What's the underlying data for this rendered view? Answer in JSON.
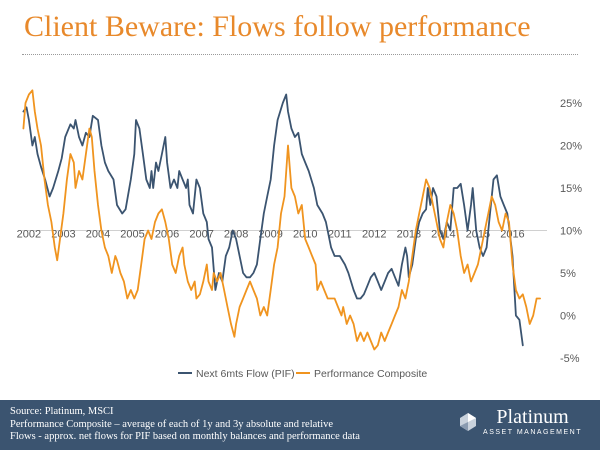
{
  "title": "Client Beware: Flows follow performance",
  "colors": {
    "title": "#e8892b",
    "flow": "#3b5470",
    "performance": "#f0941f",
    "footer_bg": "#3b5470",
    "axis_text": "#595959"
  },
  "chart_data": {
    "type": "line",
    "title": "",
    "xlabel": "",
    "ylabel": "",
    "x_tick_labels": [
      "2002",
      "2003",
      "2004",
      "2005",
      "2006",
      "2007",
      "2008",
      "2009",
      "2010",
      "2011",
      "2012",
      "2013",
      "2014",
      "2015",
      "2016"
    ],
    "y_tick_labels": [
      "25%",
      "20%",
      "15%",
      "10%",
      "5%",
      "0%",
      "-5%"
    ],
    "y_ticks": [
      25,
      20,
      15,
      10,
      5,
      0,
      -5
    ],
    "xlim": [
      2001.8,
      2017.0
    ],
    "ylim": [
      -5,
      27
    ],
    "x_axis_at": 10,
    "legend_position": "bottom",
    "series": [
      {
        "name": "Next 6mts Flow (PIF)",
        "color": "#3b5470",
        "points": [
          [
            2001.84,
            24
          ],
          [
            2001.93,
            24.5
          ],
          [
            2002.0,
            23
          ],
          [
            2002.1,
            20
          ],
          [
            2002.17,
            21
          ],
          [
            2002.25,
            19
          ],
          [
            2002.35,
            17.5
          ],
          [
            2002.47,
            16
          ],
          [
            2002.6,
            14
          ],
          [
            2002.7,
            15
          ],
          [
            2002.85,
            17
          ],
          [
            2002.95,
            18.5
          ],
          [
            2003.05,
            21
          ],
          [
            2003.2,
            22.5
          ],
          [
            2003.3,
            22
          ],
          [
            2003.35,
            23
          ],
          [
            2003.45,
            21
          ],
          [
            2003.55,
            20
          ],
          [
            2003.65,
            21.5
          ],
          [
            2003.75,
            21
          ],
          [
            2003.85,
            23.5
          ],
          [
            2004.0,
            23
          ],
          [
            2004.1,
            20
          ],
          [
            2004.2,
            18
          ],
          [
            2004.3,
            17
          ],
          [
            2004.45,
            16
          ],
          [
            2004.55,
            13
          ],
          [
            2004.7,
            12
          ],
          [
            2004.8,
            12.5
          ],
          [
            2004.95,
            16
          ],
          [
            2005.05,
            19
          ],
          [
            2005.1,
            23
          ],
          [
            2005.2,
            22
          ],
          [
            2005.3,
            19
          ],
          [
            2005.4,
            16
          ],
          [
            2005.5,
            15
          ],
          [
            2005.55,
            17
          ],
          [
            2005.6,
            15
          ],
          [
            2005.68,
            18
          ],
          [
            2005.75,
            17
          ],
          [
            2005.85,
            19
          ],
          [
            2005.95,
            21
          ],
          [
            2006.0,
            18
          ],
          [
            2006.1,
            15
          ],
          [
            2006.2,
            16
          ],
          [
            2006.3,
            15
          ],
          [
            2006.35,
            17
          ],
          [
            2006.45,
            16
          ],
          [
            2006.55,
            15
          ],
          [
            2006.6,
            16
          ],
          [
            2006.65,
            13
          ],
          [
            2006.75,
            12
          ],
          [
            2006.85,
            16
          ],
          [
            2006.95,
            15
          ],
          [
            2007.05,
            12
          ],
          [
            2007.15,
            11
          ],
          [
            2007.2,
            9
          ],
          [
            2007.3,
            8
          ],
          [
            2007.4,
            3
          ],
          [
            2007.5,
            5
          ],
          [
            2007.6,
            4
          ],
          [
            2007.7,
            7
          ],
          [
            2007.8,
            8
          ],
          [
            2007.9,
            10
          ],
          [
            2008.0,
            9
          ],
          [
            2008.1,
            7
          ],
          [
            2008.2,
            5
          ],
          [
            2008.3,
            4.5
          ],
          [
            2008.4,
            4.5
          ],
          [
            2008.5,
            5
          ],
          [
            2008.6,
            6
          ],
          [
            2008.7,
            9
          ],
          [
            2008.8,
            12
          ],
          [
            2008.9,
            14
          ],
          [
            2009.0,
            16
          ],
          [
            2009.1,
            20
          ],
          [
            2009.2,
            23
          ],
          [
            2009.35,
            25
          ],
          [
            2009.45,
            26
          ],
          [
            2009.5,
            24
          ],
          [
            2009.6,
            22
          ],
          [
            2009.7,
            21
          ],
          [
            2009.8,
            21.5
          ],
          [
            2009.9,
            19
          ],
          [
            2010.0,
            18
          ],
          [
            2010.1,
            17
          ],
          [
            2010.25,
            15
          ],
          [
            2010.35,
            13
          ],
          [
            2010.5,
            12
          ],
          [
            2010.6,
            11
          ],
          [
            2010.75,
            8
          ],
          [
            2010.85,
            7
          ],
          [
            2011.0,
            7
          ],
          [
            2011.15,
            6
          ],
          [
            2011.25,
            5
          ],
          [
            2011.4,
            3
          ],
          [
            2011.5,
            2
          ],
          [
            2011.6,
            2
          ],
          [
            2011.7,
            2.5
          ],
          [
            2011.8,
            3.5
          ],
          [
            2011.9,
            4.5
          ],
          [
            2012.0,
            5
          ],
          [
            2012.1,
            4
          ],
          [
            2012.2,
            3
          ],
          [
            2012.3,
            4
          ],
          [
            2012.4,
            5
          ],
          [
            2012.5,
            5.5
          ],
          [
            2012.6,
            4.5
          ],
          [
            2012.7,
            3.5
          ],
          [
            2012.8,
            6
          ],
          [
            2012.9,
            8
          ],
          [
            2012.95,
            7
          ],
          [
            2013.0,
            4.5
          ],
          [
            2013.1,
            6
          ],
          [
            2013.2,
            9
          ],
          [
            2013.3,
            11
          ],
          [
            2013.4,
            12
          ],
          [
            2013.5,
            12.5
          ],
          [
            2013.55,
            15
          ],
          [
            2013.62,
            13
          ],
          [
            2013.7,
            15
          ],
          [
            2013.8,
            14
          ],
          [
            2013.9,
            10
          ],
          [
            2014.0,
            9
          ],
          [
            2014.1,
            11
          ],
          [
            2014.2,
            10
          ],
          [
            2014.3,
            15
          ],
          [
            2014.4,
            15
          ],
          [
            2014.5,
            15.5
          ],
          [
            2014.6,
            13
          ],
          [
            2014.7,
            10
          ],
          [
            2014.8,
            13
          ],
          [
            2014.85,
            15
          ],
          [
            2014.95,
            10
          ],
          [
            2015.05,
            8
          ],
          [
            2015.15,
            7
          ],
          [
            2015.25,
            8
          ],
          [
            2015.35,
            12
          ],
          [
            2015.45,
            16
          ],
          [
            2015.55,
            16.5
          ],
          [
            2015.65,
            14
          ],
          [
            2015.75,
            13
          ],
          [
            2015.85,
            12
          ],
          [
            2015.9,
            10.5
          ],
          [
            2016.0,
            7
          ],
          [
            2016.1,
            0
          ],
          [
            2016.2,
            -0.5
          ],
          [
            2016.3,
            -3.5
          ]
        ]
      },
      {
        "name": "Performance Composite",
        "color": "#f0941f",
        "points": [
          [
            2001.84,
            22
          ],
          [
            2001.9,
            25
          ],
          [
            2002.0,
            26
          ],
          [
            2002.1,
            26.5
          ],
          [
            2002.17,
            24
          ],
          [
            2002.25,
            22
          ],
          [
            2002.35,
            20
          ],
          [
            2002.45,
            16
          ],
          [
            2002.55,
            13
          ],
          [
            2002.65,
            11
          ],
          [
            2002.75,
            8
          ],
          [
            2002.82,
            6.5
          ],
          [
            2002.9,
            9
          ],
          [
            2003.0,
            12
          ],
          [
            2003.1,
            16
          ],
          [
            2003.2,
            19
          ],
          [
            2003.3,
            18
          ],
          [
            2003.35,
            15
          ],
          [
            2003.45,
            17
          ],
          [
            2003.55,
            16
          ],
          [
            2003.65,
            19
          ],
          [
            2003.75,
            22
          ],
          [
            2003.82,
            21
          ],
          [
            2003.9,
            17
          ],
          [
            2004.0,
            13
          ],
          [
            2004.1,
            10
          ],
          [
            2004.2,
            8
          ],
          [
            2004.3,
            7
          ],
          [
            2004.4,
            5
          ],
          [
            2004.5,
            7
          ],
          [
            2004.55,
            6.5
          ],
          [
            2004.65,
            5
          ],
          [
            2004.75,
            4
          ],
          [
            2004.85,
            2
          ],
          [
            2004.95,
            3
          ],
          [
            2005.05,
            2
          ],
          [
            2005.15,
            3
          ],
          [
            2005.25,
            6
          ],
          [
            2005.35,
            9
          ],
          [
            2005.45,
            10
          ],
          [
            2005.55,
            9
          ],
          [
            2005.65,
            11
          ],
          [
            2005.75,
            12
          ],
          [
            2005.85,
            12.5
          ],
          [
            2005.95,
            11
          ],
          [
            2006.05,
            9
          ],
          [
            2006.15,
            6
          ],
          [
            2006.25,
            5
          ],
          [
            2006.35,
            7
          ],
          [
            2006.45,
            8
          ],
          [
            2006.5,
            6
          ],
          [
            2006.6,
            4
          ],
          [
            2006.7,
            3
          ],
          [
            2006.8,
            4
          ],
          [
            2006.85,
            2
          ],
          [
            2006.95,
            2.5
          ],
          [
            2007.05,
            4
          ],
          [
            2007.15,
            6
          ],
          [
            2007.2,
            4
          ],
          [
            2007.3,
            3
          ],
          [
            2007.35,
            5
          ],
          [
            2007.45,
            4
          ],
          [
            2007.55,
            5
          ],
          [
            2007.65,
            3
          ],
          [
            2007.75,
            1
          ],
          [
            2007.85,
            -1
          ],
          [
            2007.95,
            -2.5
          ],
          [
            2008.0,
            -1
          ],
          [
            2008.1,
            1
          ],
          [
            2008.2,
            2
          ],
          [
            2008.3,
            3
          ],
          [
            2008.4,
            4
          ],
          [
            2008.5,
            3
          ],
          [
            2008.6,
            2
          ],
          [
            2008.7,
            0
          ],
          [
            2008.8,
            1
          ],
          [
            2008.9,
            0
          ],
          [
            2009.0,
            3
          ],
          [
            2009.1,
            6
          ],
          [
            2009.2,
            8
          ],
          [
            2009.3,
            12
          ],
          [
            2009.4,
            14
          ],
          [
            2009.5,
            20
          ],
          [
            2009.6,
            15
          ],
          [
            2009.7,
            14
          ],
          [
            2009.8,
            12
          ],
          [
            2009.9,
            13
          ],
          [
            2010.0,
            9
          ],
          [
            2010.1,
            8
          ],
          [
            2010.2,
            7
          ],
          [
            2010.3,
            6
          ],
          [
            2010.35,
            3
          ],
          [
            2010.45,
            4
          ],
          [
            2010.55,
            3
          ],
          [
            2010.65,
            2
          ],
          [
            2010.75,
            2
          ],
          [
            2010.85,
            2
          ],
          [
            2010.95,
            1
          ],
          [
            2011.05,
            0
          ],
          [
            2011.1,
            1
          ],
          [
            2011.2,
            -1
          ],
          [
            2011.3,
            0
          ],
          [
            2011.4,
            -1
          ],
          [
            2011.5,
            -3
          ],
          [
            2011.6,
            -2
          ],
          [
            2011.7,
            -3
          ],
          [
            2011.8,
            -2
          ],
          [
            2011.9,
            -3
          ],
          [
            2012.0,
            -4
          ],
          [
            2012.1,
            -3.5
          ],
          [
            2012.2,
            -2
          ],
          [
            2012.3,
            -3
          ],
          [
            2012.4,
            -2
          ],
          [
            2012.5,
            -1
          ],
          [
            2012.6,
            0
          ],
          [
            2012.7,
            1
          ],
          [
            2012.8,
            3
          ],
          [
            2012.9,
            2
          ],
          [
            2013.0,
            4
          ],
          [
            2013.1,
            7
          ],
          [
            2013.2,
            10
          ],
          [
            2013.3,
            12
          ],
          [
            2013.4,
            14
          ],
          [
            2013.5,
            16
          ],
          [
            2013.6,
            15
          ],
          [
            2013.7,
            13
          ],
          [
            2013.8,
            11
          ],
          [
            2013.9,
            9
          ],
          [
            2014.0,
            8
          ],
          [
            2014.1,
            11
          ],
          [
            2014.2,
            13
          ],
          [
            2014.3,
            12
          ],
          [
            2014.4,
            10
          ],
          [
            2014.5,
            7
          ],
          [
            2014.6,
            5
          ],
          [
            2014.7,
            6
          ],
          [
            2014.8,
            4
          ],
          [
            2014.9,
            5
          ],
          [
            2015.0,
            6
          ],
          [
            2015.1,
            8
          ],
          [
            2015.2,
            10
          ],
          [
            2015.3,
            12
          ],
          [
            2015.4,
            14
          ],
          [
            2015.5,
            13
          ],
          [
            2015.6,
            11
          ],
          [
            2015.7,
            10
          ],
          [
            2015.8,
            12
          ],
          [
            2015.9,
            11
          ],
          [
            2016.0,
            6
          ],
          [
            2016.1,
            3
          ],
          [
            2016.2,
            2
          ],
          [
            2016.3,
            2.5
          ],
          [
            2016.4,
            1
          ],
          [
            2016.5,
            -1
          ],
          [
            2016.6,
            0
          ],
          [
            2016.7,
            2
          ],
          [
            2016.8,
            2
          ]
        ]
      }
    ]
  },
  "footer": {
    "lines": [
      "Source:  Platinum, MSCI",
      "Performance Composite – average of each of 1y and 3y absolute and relative",
      "Flows  - approx. net flows for PIF based on monthly balances and performance data"
    ],
    "logo_name": "Platinum",
    "logo_sub": "ASSET MANAGEMENT",
    "logo_icon": "platinum-logo-icon"
  }
}
